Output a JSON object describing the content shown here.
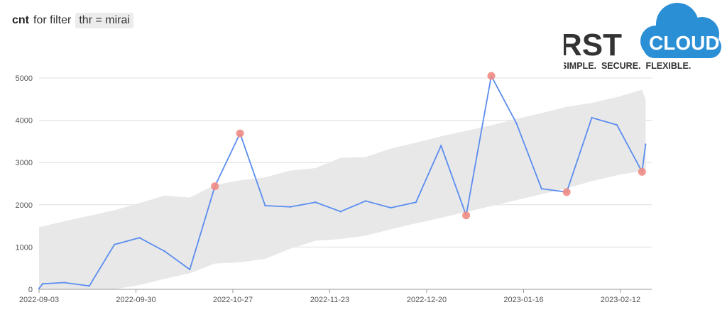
{
  "header": {
    "metric": "cnt",
    "filter_label": "for filter",
    "filter_value": "thr = mirai"
  },
  "logo": {
    "brand_left": "RST",
    "brand_right": "CLOUD",
    "tagline": "SIMPLE.  SECURE.  FLEXIBLE.",
    "cloud_color": "#2b8fd6",
    "text_color": "#333333"
  },
  "colors": {
    "line": "#5b8def",
    "band": "#e8e8e8",
    "anomaly": "#f08c84",
    "grid": "#dddddd"
  },
  "chart_data": {
    "type": "line",
    "title": "",
    "xlabel": "",
    "ylabel": "",
    "ylim": [
      0,
      5000
    ],
    "yticks": [
      0,
      1000,
      2000,
      3000,
      4000,
      5000
    ],
    "xticks": [
      "2022-09-03",
      "2022-09-30",
      "2022-10-27",
      "2022-11-23",
      "2022-12-20",
      "2023-01-16",
      "2023-02-12"
    ],
    "x": [
      "2022-09-03",
      "2022-09-04",
      "2022-09-10",
      "2022-09-17",
      "2022-09-24",
      "2022-10-01",
      "2022-10-08",
      "2022-10-15",
      "2022-10-22",
      "2022-10-29",
      "2022-11-05",
      "2022-11-12",
      "2022-11-19",
      "2022-11-26",
      "2022-12-03",
      "2022-12-10",
      "2022-12-17",
      "2022-12-24",
      "2022-12-31",
      "2023-01-07",
      "2023-01-14",
      "2023-01-21",
      "2023-01-28",
      "2023-02-04",
      "2023-02-11",
      "2023-02-18",
      "2023-02-19"
    ],
    "series": [
      {
        "values": [
          20,
          130,
          160,
          80,
          1060,
          1220,
          900,
          470,
          2440,
          3690,
          1980,
          1950,
          2060,
          1840,
          2090,
          1930,
          2060,
          3400,
          1750,
          5050,
          3930,
          2380,
          2300,
          4060,
          3890,
          2780,
          3430
        ]
      }
    ],
    "band_upper": [
      1470,
      1490,
      1610,
      1740,
      1870,
      2040,
      2220,
      2170,
      2470,
      2580,
      2650,
      2810,
      2870,
      3110,
      3130,
      3330,
      3470,
      3620,
      3750,
      3880,
      4030,
      4170,
      4320,
      4410,
      4550,
      4720,
      4490
    ],
    "band_lower": [
      0,
      0,
      0,
      0,
      0,
      100,
      250,
      380,
      610,
      640,
      720,
      960,
      1150,
      1190,
      1270,
      1420,
      1560,
      1690,
      1830,
      1970,
      2110,
      2250,
      2390,
      2560,
      2700,
      2800,
      2830
    ],
    "anomalies": [
      {
        "x": "2022-10-22",
        "y": 2440
      },
      {
        "x": "2022-10-29",
        "y": 3690
      },
      {
        "x": "2022-12-31",
        "y": 1750
      },
      {
        "x": "2023-01-07",
        "y": 5050
      },
      {
        "x": "2023-01-28",
        "y": 2300
      },
      {
        "x": "2023-02-18",
        "y": 2780
      }
    ],
    "grid": true,
    "legend": "none"
  }
}
